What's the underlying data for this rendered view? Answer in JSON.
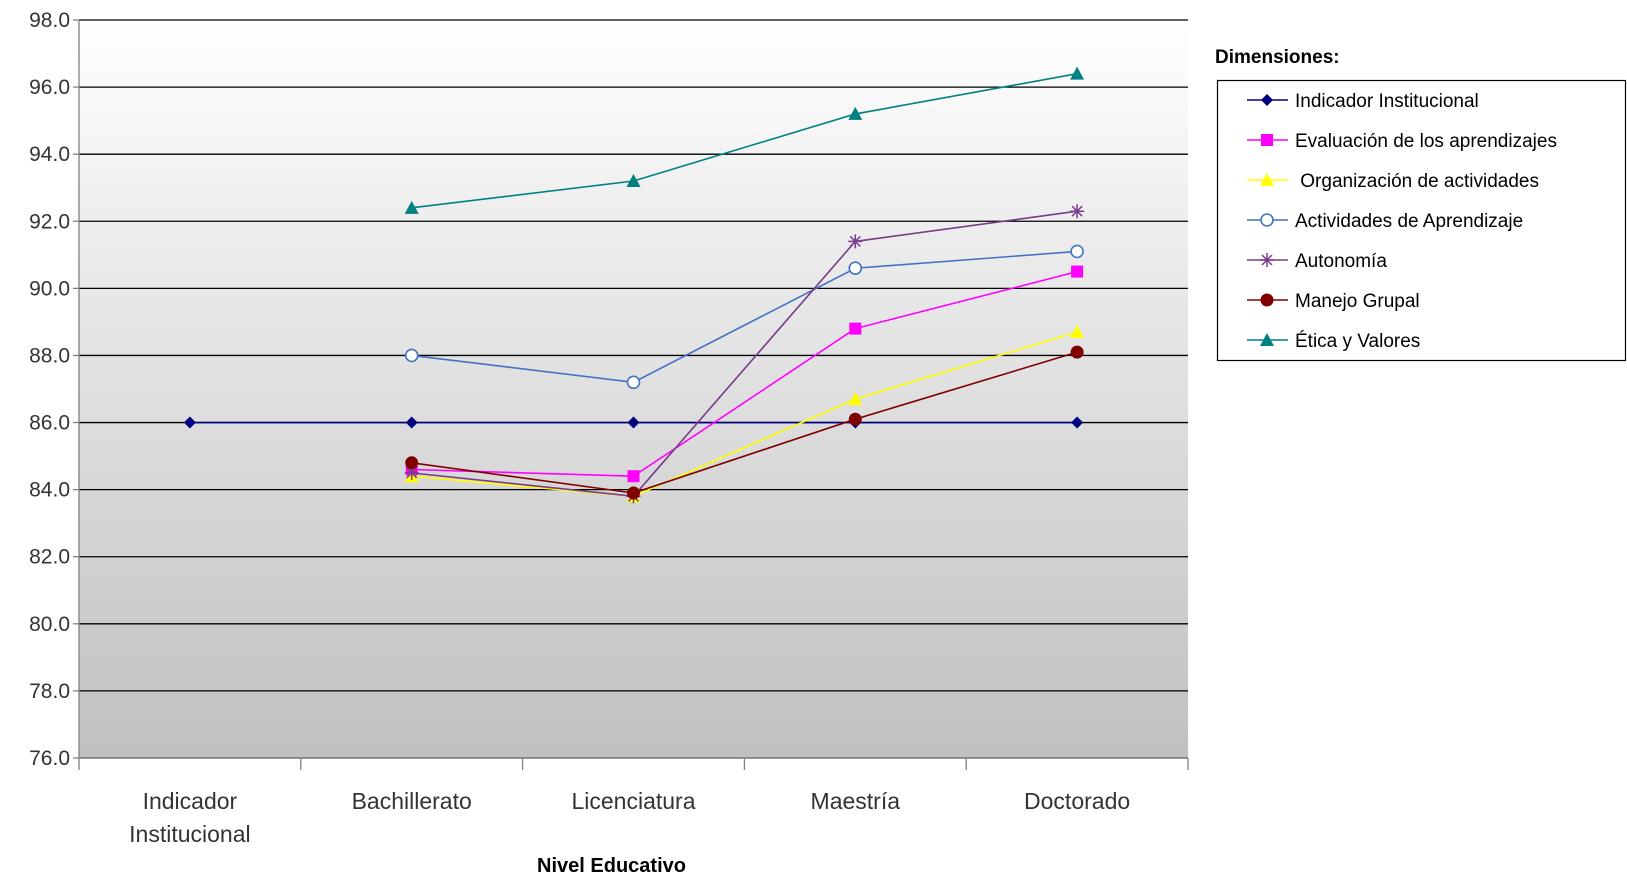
{
  "chart_data": {
    "type": "line",
    "title": "",
    "categories": [
      "Indicador\nInstitucional",
      "Bachillerato",
      "Licenciatura",
      "Maestría",
      "Doctorado"
    ],
    "xlabel": "Nivel Educativo",
    "ylabel": "",
    "ylim": [
      76.0,
      98.0
    ],
    "yticks": [
      "76.0",
      "78.0",
      "80.0",
      "82.0",
      "84.0",
      "86.0",
      "88.0",
      "90.0",
      "92.0",
      "94.0",
      "96.0",
      "98.0"
    ],
    "grid": true,
    "legend": {
      "title": "Dimensiones:",
      "position": "right"
    },
    "series": [
      {
        "name": "Indicador Institucional",
        "color": "#000080",
        "marker": "diamond",
        "values": [
          86.0,
          86.0,
          86.0,
          86.0,
          86.0
        ]
      },
      {
        "name": "Evaluación de los aprendizajes",
        "color": "#ff00ff",
        "marker": "square",
        "values": [
          null,
          84.6,
          84.4,
          88.8,
          90.5
        ]
      },
      {
        "name": " Organización de actividades",
        "color": "#ffff00",
        "marker": "triangle",
        "values": [
          null,
          84.4,
          83.8,
          86.7,
          88.7
        ]
      },
      {
        "name": "Actividades de Aprendizaje",
        "color": "#4472c4",
        "marker": "circle-open",
        "values": [
          null,
          88.0,
          87.2,
          90.6,
          91.1
        ]
      },
      {
        "name": "Autonomía",
        "color": "#7a3b8c",
        "marker": "star",
        "values": [
          null,
          84.5,
          83.8,
          91.4,
          92.3
        ]
      },
      {
        "name": "Manejo Grupal",
        "color": "#800000",
        "marker": "circle",
        "values": [
          null,
          84.8,
          83.9,
          86.1,
          88.1
        ]
      },
      {
        "name": "Ética y Valores",
        "color": "#008080",
        "marker": "triangle",
        "values": [
          null,
          92.4,
          93.2,
          95.2,
          96.4
        ]
      }
    ]
  }
}
